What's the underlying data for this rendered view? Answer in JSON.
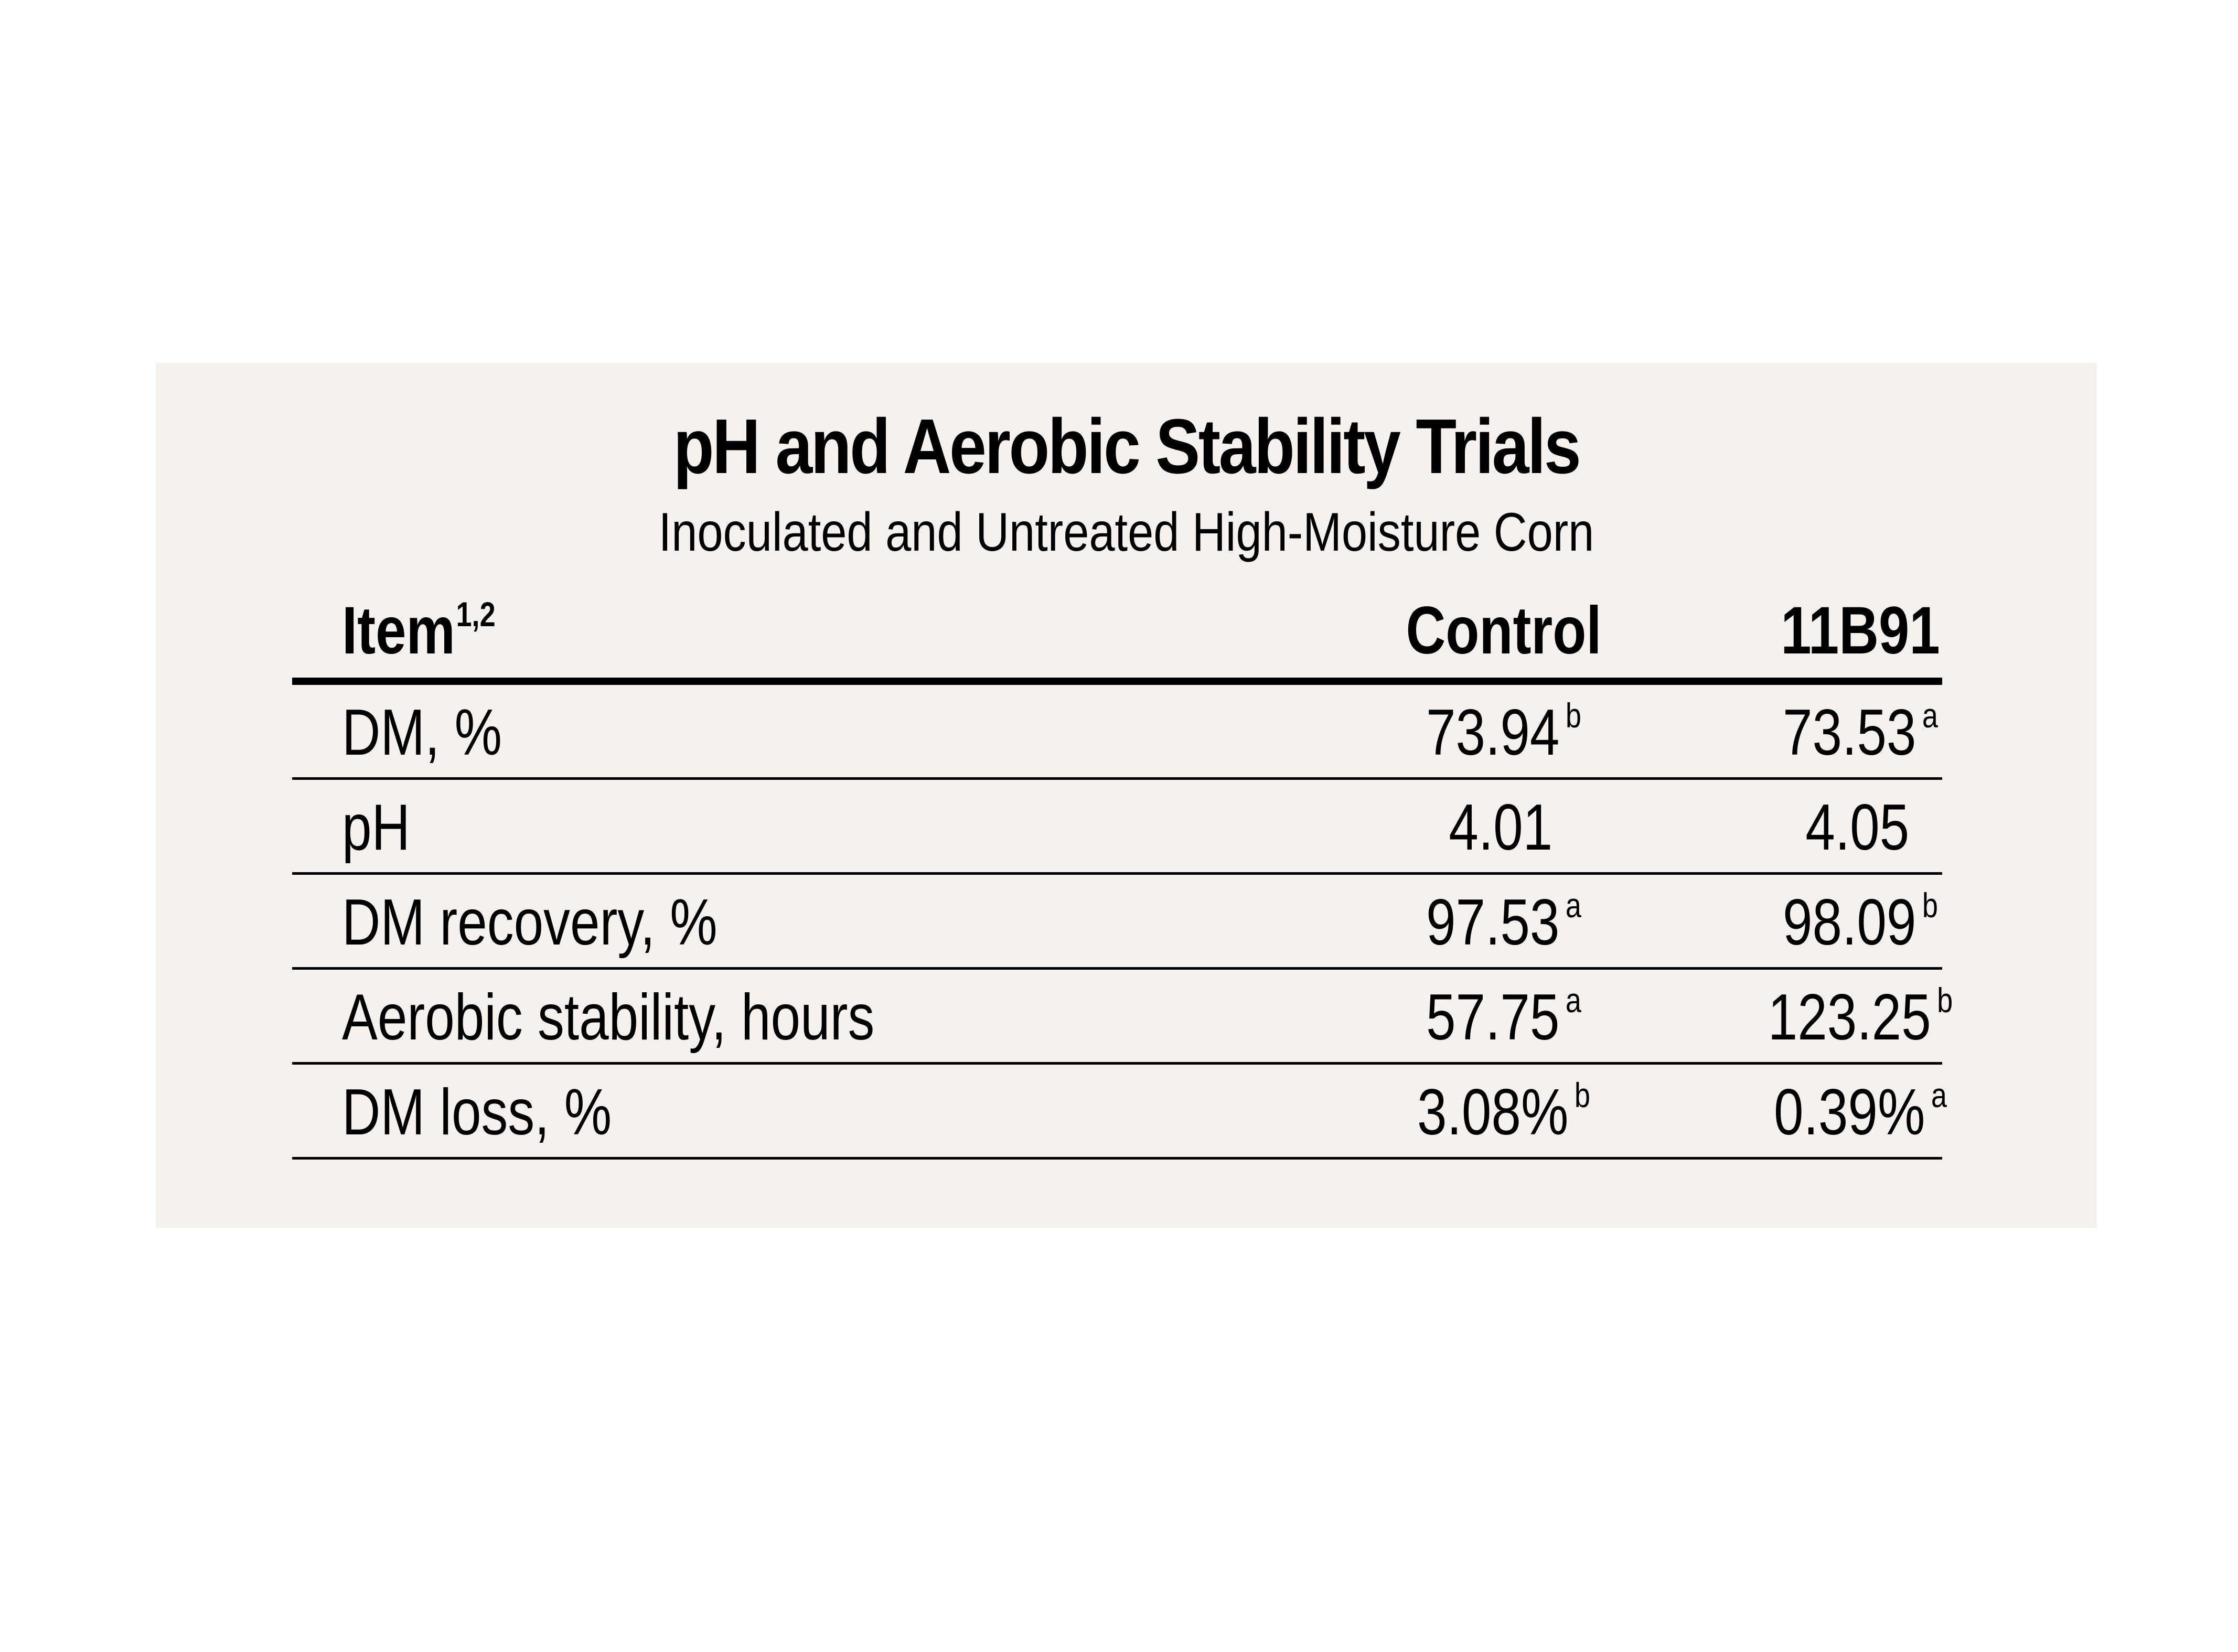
{
  "chart_data": {
    "type": "table",
    "title": "pH and Aerobic Stability Trials",
    "subtitle": "Inoculated and Untreated High-Moisture Corn",
    "columns": {
      "item": "Item",
      "item_sup": "1,2",
      "control": "Control",
      "treated": "11B91"
    },
    "rows": [
      {
        "item": "DM, %",
        "control": "73.94",
        "control_sup": "b",
        "treated": "73.53",
        "treated_sup": "a"
      },
      {
        "item": "pH",
        "control": "4.01",
        "control_sup": "",
        "treated": "4.05",
        "treated_sup": ""
      },
      {
        "item": "DM recovery, %",
        "control": "97.53",
        "control_sup": "a",
        "treated": "98.09",
        "treated_sup": "b"
      },
      {
        "item": "Aerobic stability, hours",
        "control": "57.75",
        "control_sup": "a",
        "treated": "123.25",
        "treated_sup": "b"
      },
      {
        "item": "DM loss, %",
        "control": "3.08%",
        "control_sup": "b",
        "treated": "0.39%",
        "treated_sup": "a"
      }
    ]
  },
  "colors": {
    "panel_background": "#f4f1ee",
    "text": "#000000",
    "rule": "#000000"
  }
}
